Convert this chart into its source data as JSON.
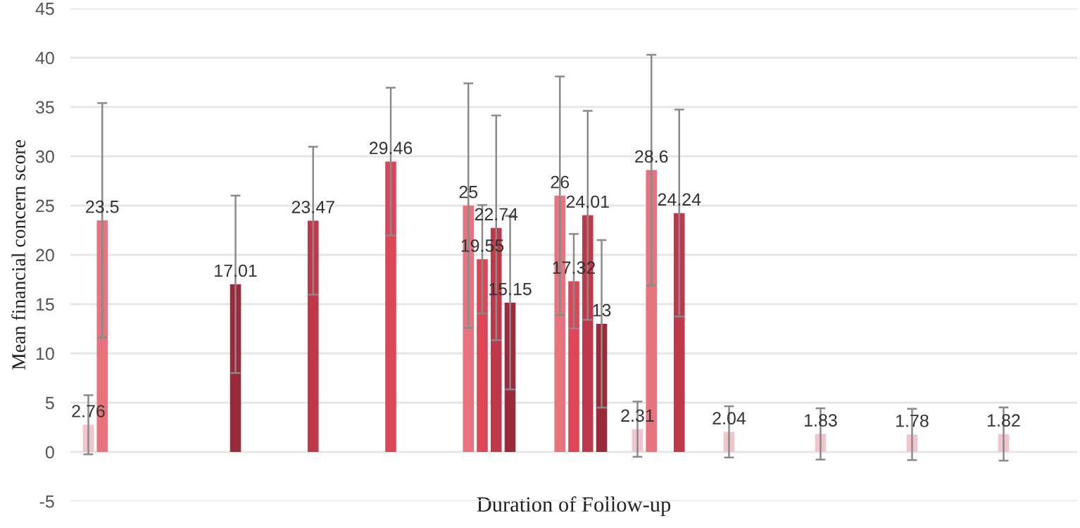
{
  "chart_data": {
    "type": "bar",
    "xlabel": "Duration of Follow-up",
    "ylabel": "Mean financial concern score",
    "categories": [
      null,
      null,
      null,
      null,
      null,
      null,
      null,
      null,
      null,
      null,
      null
    ],
    "series": [
      {
        "color": "#f2c4cb",
        "values": [
          2.76,
          null,
          null,
          null,
          null,
          null,
          2.31,
          2.04,
          1.83,
          1.78,
          1.82
        ],
        "errors": [
          3.0,
          null,
          null,
          null,
          null,
          null,
          2.8,
          2.6,
          2.6,
          2.6,
          2.7
        ]
      },
      {
        "color": "#e8737f",
        "values": [
          23.5,
          null,
          null,
          null,
          25,
          26,
          28.6,
          null,
          null,
          null,
          null
        ],
        "errors": [
          11.9,
          null,
          null,
          null,
          12.4,
          12.1,
          11.7,
          null,
          null,
          null,
          null
        ]
      },
      {
        "color": "#dc4657",
        "values": [
          null,
          null,
          null,
          29.46,
          19.55,
          17.32,
          null,
          null,
          null,
          null,
          null
        ],
        "errors": [
          null,
          null,
          null,
          7.5,
          5.5,
          4.8,
          null,
          null,
          null,
          null,
          null
        ]
      },
      {
        "color": "#c0394b",
        "values": [
          null,
          null,
          23.47,
          null,
          22.74,
          24.01,
          24.24,
          null,
          null,
          null,
          null
        ],
        "errors": [
          null,
          null,
          7.5,
          null,
          11.4,
          10.6,
          10.5,
          null,
          null,
          null,
          null
        ]
      },
      {
        "color": "#9b2a3a",
        "values": [
          null,
          17.01,
          null,
          null,
          15.15,
          13,
          null,
          null,
          null,
          null,
          null
        ],
        "errors": [
          null,
          9.0,
          null,
          null,
          8.8,
          8.5,
          null,
          null,
          null,
          null,
          null
        ]
      }
    ],
    "ylim": [
      -5,
      45
    ],
    "yticks": [
      -5,
      0,
      5,
      10,
      15,
      20,
      25,
      30,
      35,
      40,
      45
    ],
    "grid": "y",
    "data_labels": true,
    "legend": false
  }
}
